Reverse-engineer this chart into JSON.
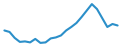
{
  "x": [
    0,
    1,
    2,
    3,
    4,
    5,
    6,
    7,
    8,
    9,
    10,
    11,
    12,
    13,
    14,
    15,
    16,
    17,
    18,
    19,
    20,
    21,
    22
  ],
  "y": [
    6.5,
    6.2,
    5.0,
    4.2,
    4.3,
    4.1,
    4.8,
    4.0,
    4.1,
    4.9,
    5.1,
    5.5,
    6.5,
    7.2,
    8.0,
    9.2,
    10.5,
    11.8,
    10.8,
    9.0,
    7.2,
    7.8,
    7.5
  ],
  "line_color": "#2b8fc9",
  "linewidth": 1.5,
  "background_color": "#ffffff"
}
